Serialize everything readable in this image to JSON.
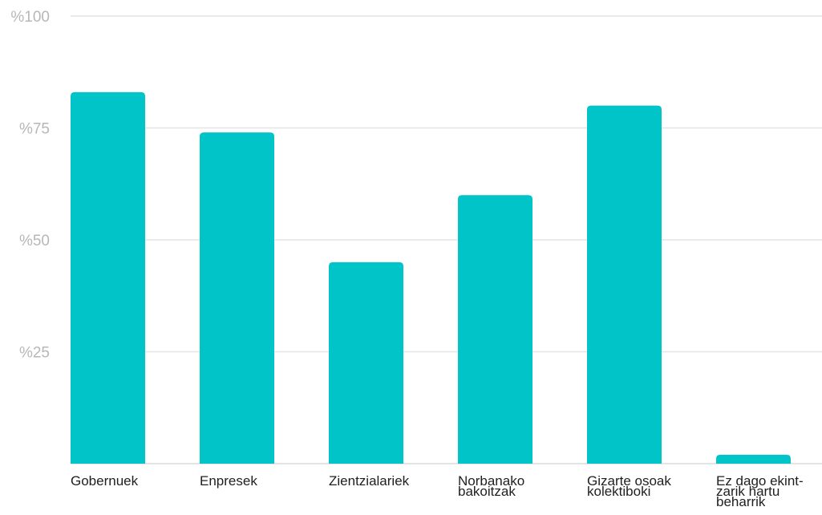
{
  "chart_data": {
    "type": "bar",
    "categories": [
      [
        "Gobernuek"
      ],
      [
        "Enpresek"
      ],
      [
        "Zientzialariek"
      ],
      [
        "Norbanako",
        "bakoitzak"
      ],
      [
        "Gizarte osoak",
        "kolektiboki"
      ],
      [
        "Ez dago ekint-",
        "zarik hartu",
        "beharrik"
      ]
    ],
    "values": [
      83,
      74,
      45,
      60,
      80,
      2
    ],
    "ylim": [
      0,
      100
    ],
    "yticks": [
      25,
      50,
      75,
      100
    ],
    "ytick_labels": [
      "%25",
      "%50",
      "%75",
      "%100"
    ],
    "grid": true,
    "legend": "none",
    "title": "",
    "xlabel": "",
    "ylabel": "",
    "colors": {
      "bar": "#00c4c8"
    }
  }
}
